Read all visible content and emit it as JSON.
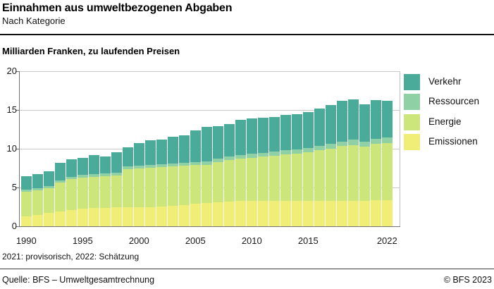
{
  "header": {
    "title": "Einnahmen aus umweltbezogenen Abgaben",
    "subtitle": "Nach Kategorie"
  },
  "unit_label": "Milliarden Franken, zu laufenden Preisen",
  "footnote": "2021: provisorisch, 2022: Schätzung",
  "footer": {
    "source": "Quelle: BFS – Umweltgesamtrechnung",
    "copyright": "© BFS 2023"
  },
  "legend": {
    "items": [
      {
        "label": "Verkehr",
        "color": "#4aab9a"
      },
      {
        "label": "Ressourcen",
        "color": "#8fd1a5"
      },
      {
        "label": "Energie",
        "color": "#cce67b"
      },
      {
        "label": "Emissionen",
        "color": "#f1ee77"
      }
    ]
  },
  "chart_data": {
    "type": "bar",
    "stacked": true,
    "title": "Einnahmen aus umweltbezogenen Abgaben – Nach Kategorie",
    "ylabel": "Milliarden Franken, zu laufenden Preisen",
    "xlabel": "",
    "ylim": [
      0,
      20
    ],
    "yticks": [
      0,
      5,
      10,
      15,
      20
    ],
    "xtick_labels": [
      "1990",
      "1995",
      "2000",
      "2005",
      "2010",
      "2015",
      "2022"
    ],
    "grid": true,
    "legend_position": "right",
    "categories": [
      1990,
      1991,
      1992,
      1993,
      1994,
      1995,
      1996,
      1997,
      1998,
      1999,
      2000,
      2001,
      2002,
      2003,
      2004,
      2005,
      2006,
      2007,
      2008,
      2009,
      2010,
      2011,
      2012,
      2013,
      2014,
      2015,
      2016,
      2017,
      2018,
      2019,
      2020,
      2021,
      2022
    ],
    "series": [
      {
        "name": "Emissionen",
        "color": "#f1ee77",
        "values": [
          1.3,
          1.45,
          1.7,
          1.9,
          2.1,
          2.25,
          2.35,
          2.4,
          2.45,
          2.45,
          2.45,
          2.5,
          2.55,
          2.65,
          2.75,
          2.95,
          3.0,
          3.1,
          3.2,
          3.25,
          3.25,
          3.25,
          3.3,
          3.3,
          3.3,
          3.25,
          3.25,
          3.25,
          3.3,
          3.3,
          3.3,
          3.35,
          3.35
        ]
      },
      {
        "name": "Energie",
        "color": "#cce67b",
        "values": [
          3.15,
          3.2,
          3.2,
          3.7,
          4.0,
          4.0,
          4.0,
          4.1,
          4.1,
          4.95,
          5.0,
          5.05,
          5.05,
          5.05,
          5.05,
          4.95,
          4.95,
          5.2,
          5.35,
          5.5,
          5.6,
          5.75,
          5.8,
          6.0,
          6.05,
          6.3,
          6.55,
          6.75,
          7.05,
          7.2,
          6.95,
          7.3,
          7.4
        ]
      },
      {
        "name": "Ressourcen",
        "color": "#8fd1a5",
        "values": [
          0.3,
          0.3,
          0.3,
          0.3,
          0.3,
          0.35,
          0.35,
          0.35,
          0.35,
          0.35,
          0.35,
          0.35,
          0.4,
          0.4,
          0.4,
          0.4,
          0.4,
          0.45,
          0.45,
          0.45,
          0.5,
          0.5,
          0.55,
          0.55,
          0.6,
          0.55,
          0.6,
          0.65,
          0.6,
          0.65,
          0.7,
          0.65,
          0.7
        ]
      },
      {
        "name": "Verkehr",
        "color": "#4aab9a",
        "values": [
          1.7,
          1.8,
          1.9,
          2.3,
          2.2,
          2.25,
          2.5,
          2.15,
          2.65,
          2.45,
          2.95,
          3.2,
          3.2,
          3.45,
          3.5,
          4.1,
          4.45,
          4.2,
          4.15,
          4.5,
          4.6,
          4.5,
          4.45,
          4.55,
          4.5,
          4.6,
          4.8,
          4.95,
          5.2,
          5.2,
          4.8,
          4.95,
          4.75
        ]
      }
    ],
    "totals": [
      6.45,
      6.75,
      7.1,
      8.2,
      8.6,
      8.85,
      9.2,
      9.0,
      9.55,
      10.2,
      10.75,
      11.1,
      11.2,
      11.55,
      11.7,
      12.4,
      12.8,
      12.95,
      13.15,
      13.7,
      13.95,
      14.0,
      14.1,
      14.4,
      14.45,
      14.7,
      15.2,
      15.6,
      16.15,
      16.35,
      15.75,
      16.25,
      16.2
    ]
  }
}
